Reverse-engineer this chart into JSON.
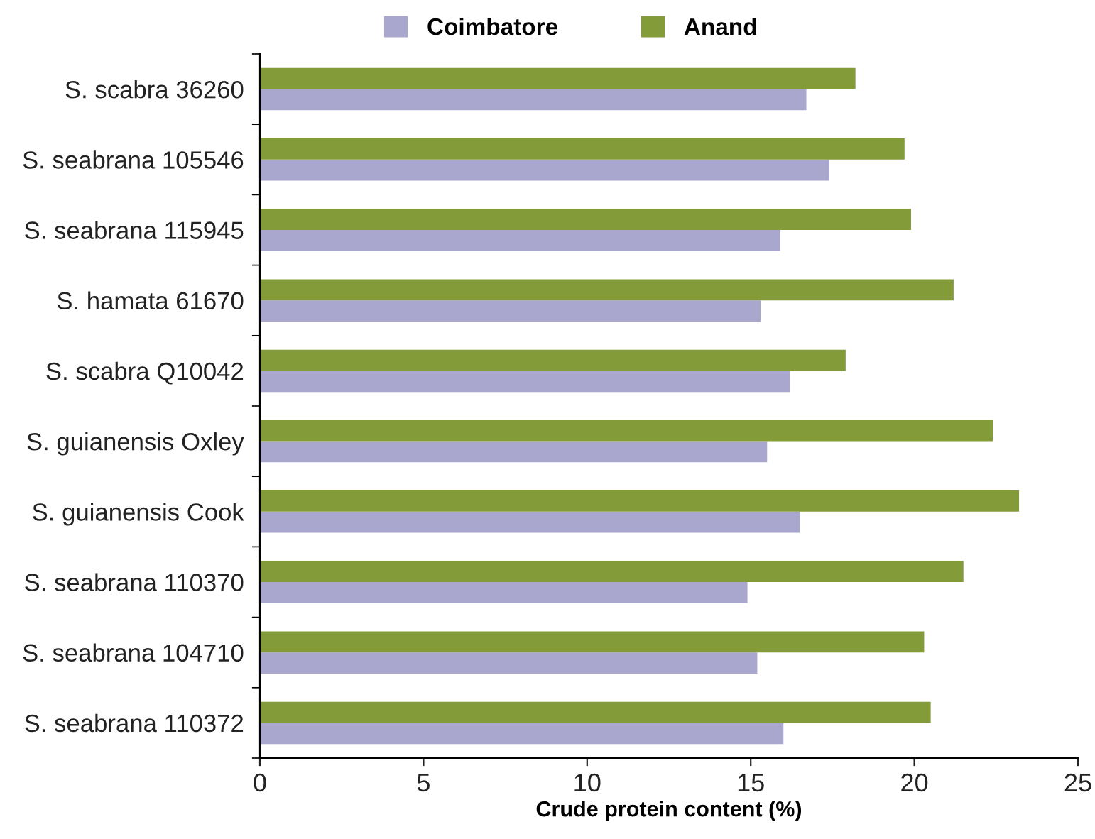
{
  "chart_data": {
    "type": "bar",
    "orientation": "horizontal",
    "xlabel": "Crude protein content (%)",
    "categories": [
      "S. scabra 36260",
      "S. seabrana 105546",
      "S. seabrana 115945",
      "S. hamata 61670",
      "S. scabra Q10042",
      "S. guianensis Oxley",
      "S. guianensis Cook",
      "S. seabrana 110370",
      "S. seabrana 104710",
      "S. seabrana 110372"
    ],
    "series": [
      {
        "name": "Coimbatore",
        "color": "#a9a7ce",
        "values": [
          16.7,
          17.4,
          15.9,
          15.3,
          16.2,
          15.5,
          16.5,
          14.9,
          15.2,
          16.0
        ]
      },
      {
        "name": "Anand",
        "color": "#839b39",
        "values": [
          18.2,
          19.7,
          19.9,
          21.2,
          17.9,
          22.4,
          23.2,
          21.5,
          20.3,
          20.5
        ]
      }
    ],
    "xlim": [
      0,
      25
    ],
    "xticks": [
      0,
      5,
      10,
      15,
      20,
      25
    ],
    "grid": false,
    "legend": "top"
  }
}
